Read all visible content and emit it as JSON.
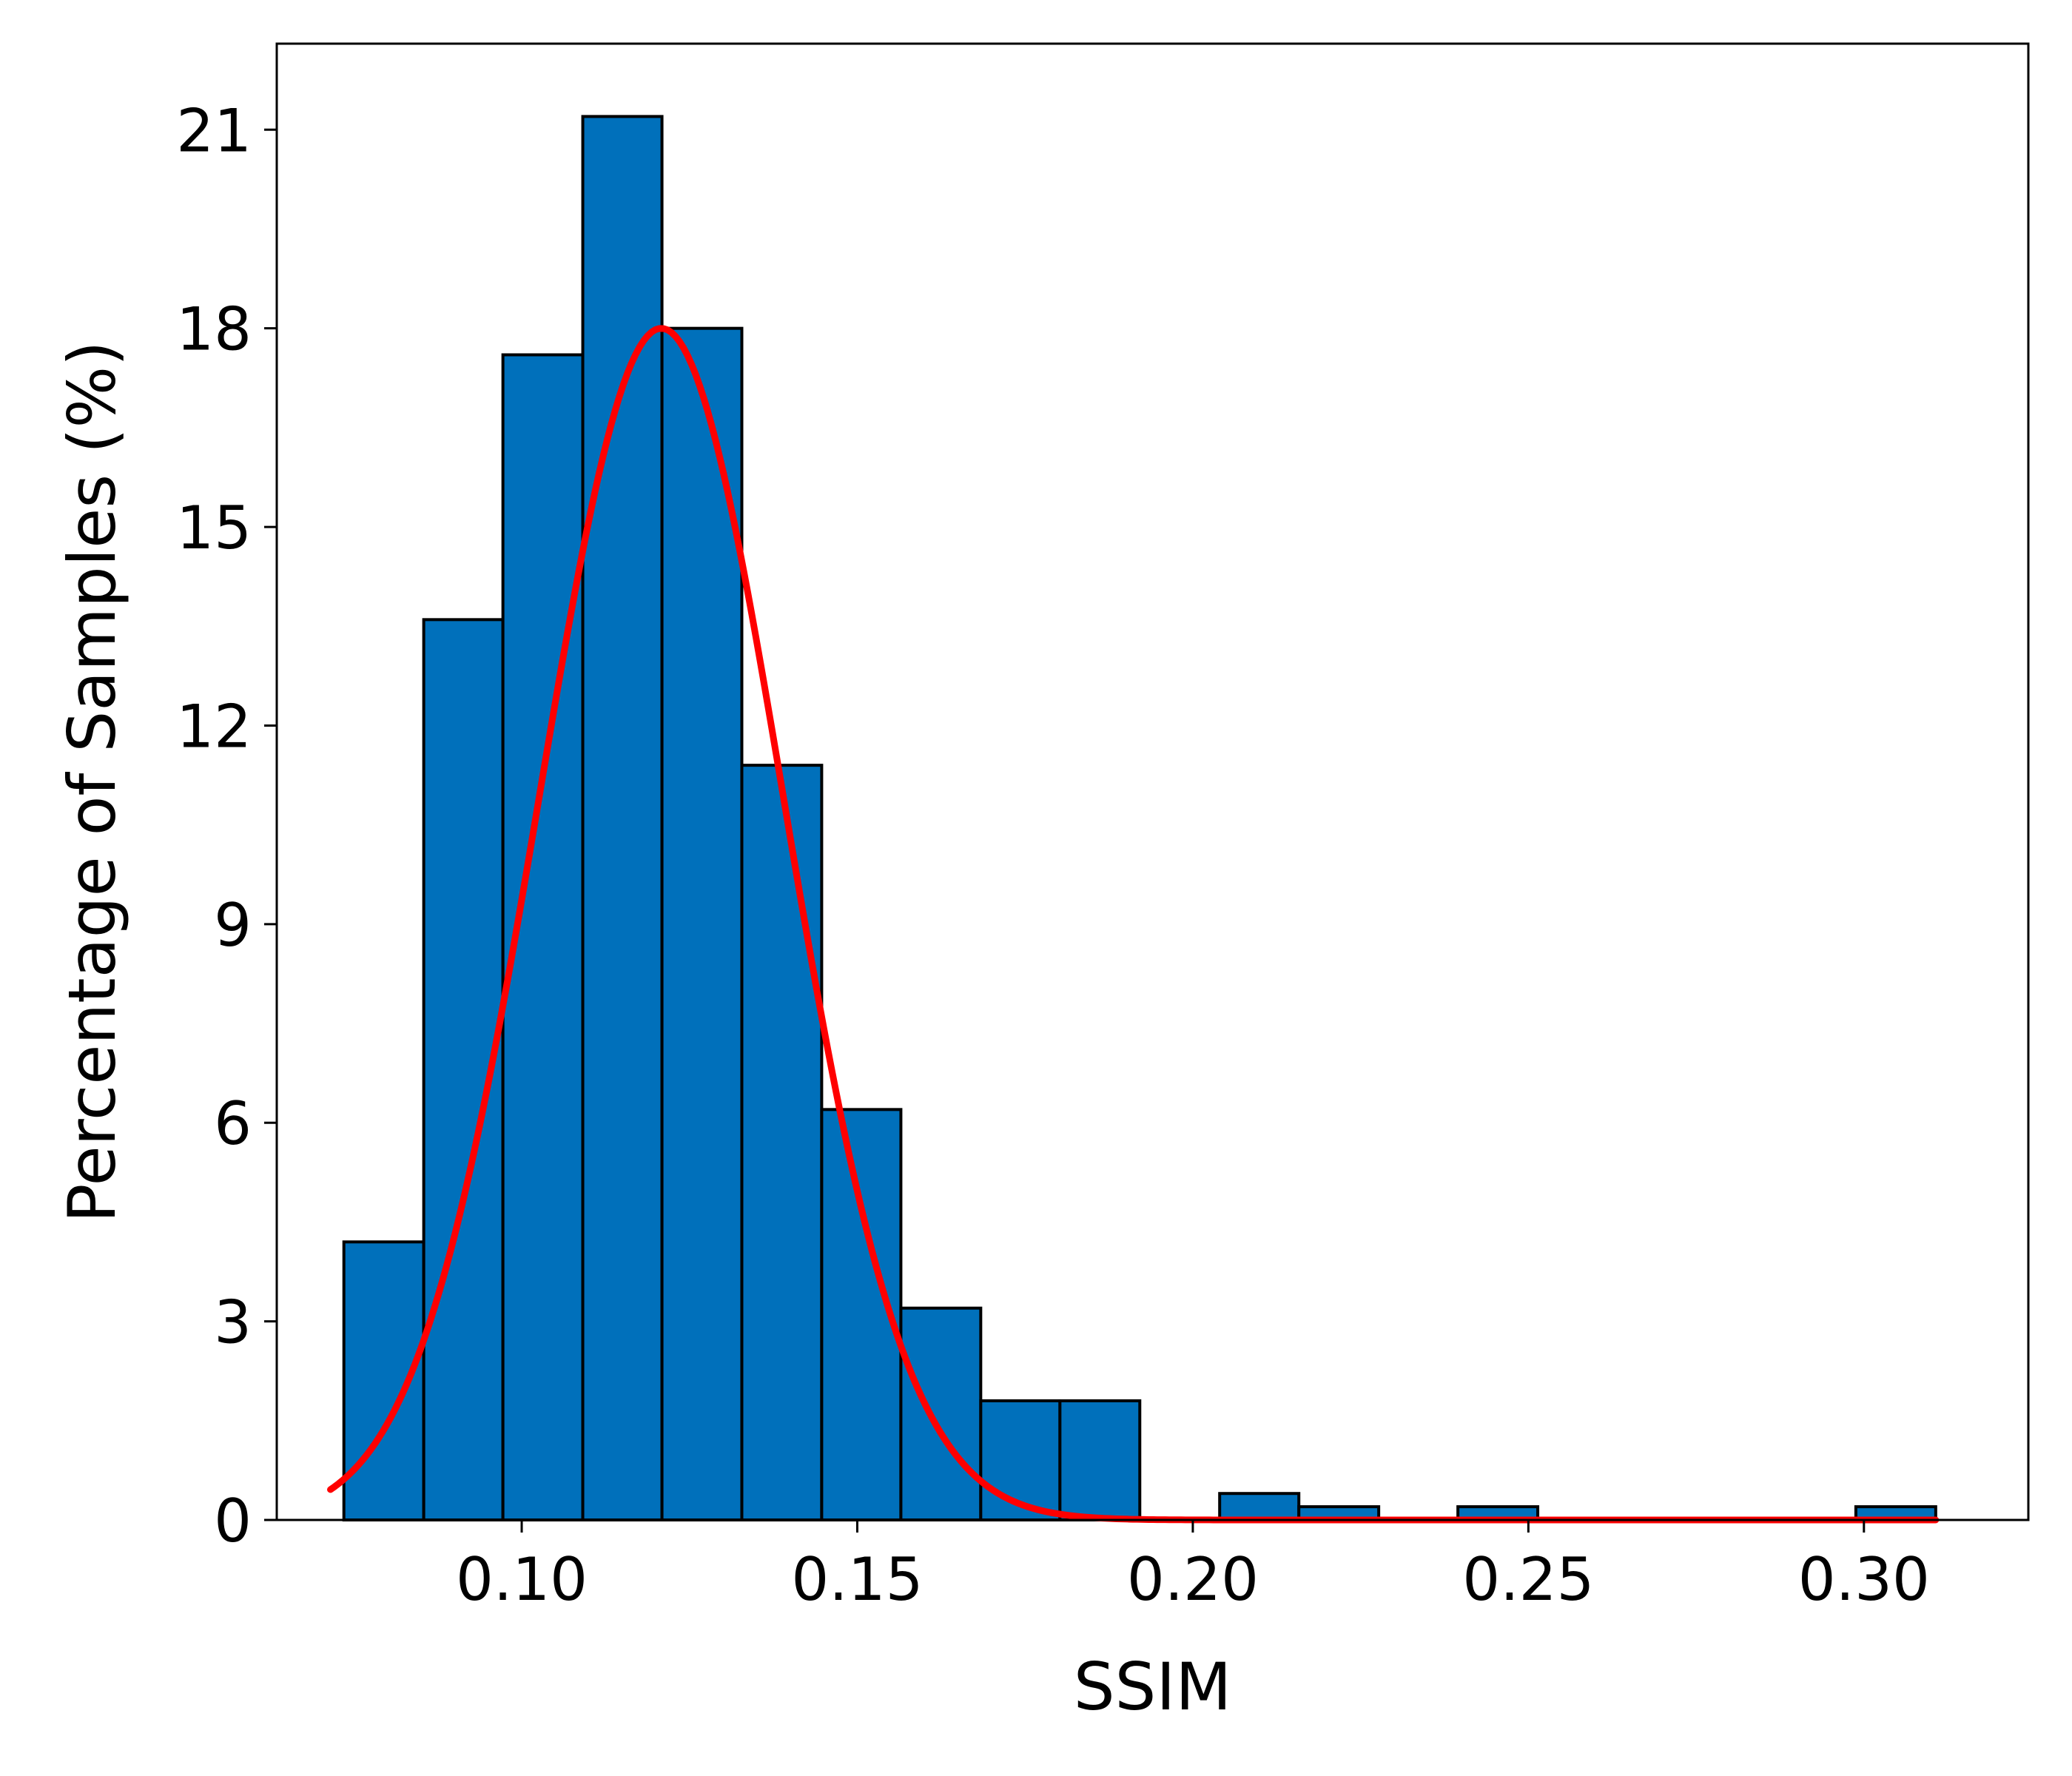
{
  "chart_data": {
    "type": "bar",
    "title": "",
    "xlabel": "SSIM",
    "ylabel": "Percentage of Samples (%)",
    "xlim": [
      0.0635,
      0.3245
    ],
    "ylim": [
      0,
      22.3
    ],
    "xticks": [
      0.1,
      0.15,
      0.2,
      0.25,
      0.3
    ],
    "xtick_labels": [
      "0.10",
      "0.15",
      "0.20",
      "0.25",
      "0.30"
    ],
    "yticks": [
      0,
      3,
      6,
      9,
      12,
      15,
      18,
      21
    ],
    "ytick_labels": [
      "0",
      "3",
      "6",
      "9",
      "12",
      "15",
      "18",
      "21"
    ],
    "grid": false,
    "bins": [
      {
        "x0": 0.0735,
        "x1": 0.0854,
        "value": 4.2
      },
      {
        "x0": 0.0854,
        "x1": 0.0972,
        "value": 13.6
      },
      {
        "x0": 0.0972,
        "x1": 0.1091,
        "value": 17.6
      },
      {
        "x0": 0.1091,
        "x1": 0.1209,
        "value": 21.2
      },
      {
        "x0": 0.1209,
        "x1": 0.1328,
        "value": 18.0
      },
      {
        "x0": 0.1328,
        "x1": 0.1447,
        "value": 11.4
      },
      {
        "x0": 0.1447,
        "x1": 0.1565,
        "value": 6.2
      },
      {
        "x0": 0.1565,
        "x1": 0.1684,
        "value": 3.2
      },
      {
        "x0": 0.1684,
        "x1": 0.1802,
        "value": 1.8
      },
      {
        "x0": 0.1802,
        "x1": 0.1921,
        "value": 1.8
      },
      {
        "x0": 0.1921,
        "x1": 0.204,
        "value": 0.0
      },
      {
        "x0": 0.204,
        "x1": 0.2158,
        "value": 0.4
      },
      {
        "x0": 0.2158,
        "x1": 0.2277,
        "value": 0.2
      },
      {
        "x0": 0.2277,
        "x1": 0.2395,
        "value": 0.0
      },
      {
        "x0": 0.2395,
        "x1": 0.2514,
        "value": 0.2
      },
      {
        "x0": 0.2514,
        "x1": 0.2633,
        "value": 0.0
      },
      {
        "x0": 0.2633,
        "x1": 0.2751,
        "value": 0.0
      },
      {
        "x0": 0.2751,
        "x1": 0.287,
        "value": 0.0
      },
      {
        "x0": 0.287,
        "x1": 0.2988,
        "value": 0.0
      },
      {
        "x0": 0.2988,
        "x1": 0.3107,
        "value": 0.2
      }
    ],
    "fit_curve": {
      "type": "line",
      "distribution": "normal",
      "mean": 0.1208,
      "std": 0.0182,
      "peak": 18.0,
      "x_range": [
        0.0715,
        0.3107
      ]
    },
    "colors": {
      "bar_fill": "#0070BB",
      "bar_edge": "#000000",
      "curve": "#FF0000"
    }
  }
}
